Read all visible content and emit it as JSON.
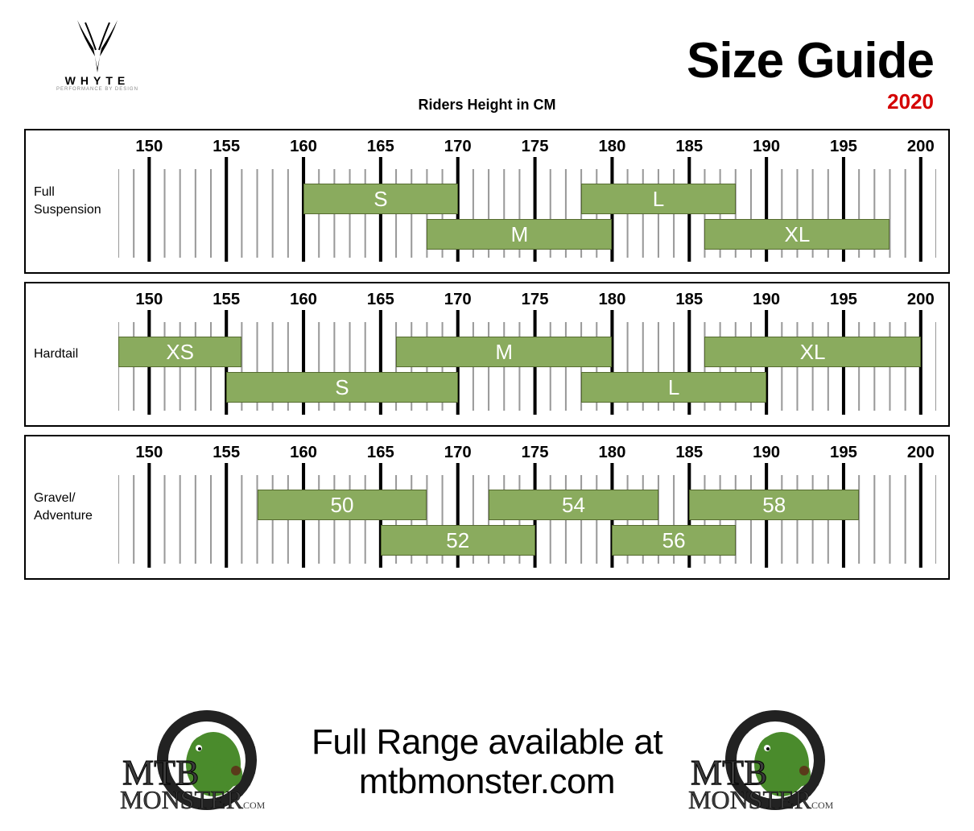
{
  "title": "Size Guide",
  "year": "2020",
  "axis_title": "Riders Height in CM",
  "brand_logo_text": "WHYTE",
  "brand_logo_sub": "PERFORMANCE BY DESIGN",
  "footer_line1": "Full Range available at",
  "footer_line2": "mtbmonster.com",
  "store_logo_main": "MTB",
  "store_logo_sub": "MONSTER",
  "store_logo_tld": ".COM",
  "axis": {
    "min": 148,
    "max": 201,
    "major_ticks": [
      150,
      155,
      160,
      165,
      170,
      175,
      180,
      185,
      190,
      195,
      200
    ],
    "minor_step": 1
  },
  "colors": {
    "bar_fill": "#8aab5e",
    "bar_border": "#556b2f",
    "major_tick": "#000000",
    "minor_tick": "#999999",
    "panel_border": "#000000",
    "background": "#ffffff",
    "year": "#d40000",
    "bar_text": "#ffffff",
    "logo_green": "#4a8b2c"
  },
  "typography": {
    "title_fontsize": 62,
    "year_fontsize": 26,
    "axis_title_fontsize": 18,
    "tick_label_fontsize": 18,
    "category_label_fontsize": 16,
    "bar_label_fontsize": 26,
    "footer_fontsize": 44,
    "title_font": "Impact",
    "body_font": "Arial"
  },
  "panels": [
    {
      "label": "Full\nSuspension",
      "bars": [
        {
          "label": "S",
          "from": 160,
          "to": 170,
          "row": 0
        },
        {
          "label": "M",
          "from": 168,
          "to": 180,
          "row": 1
        },
        {
          "label": "L",
          "from": 178,
          "to": 188,
          "row": 0
        },
        {
          "label": "XL",
          "from": 186,
          "to": 198,
          "row": 1
        }
      ]
    },
    {
      "label": "Hardtail",
      "bars": [
        {
          "label": "XS",
          "from": 148,
          "to": 156,
          "row": 0
        },
        {
          "label": "S",
          "from": 155,
          "to": 170,
          "row": 1
        },
        {
          "label": "M",
          "from": 166,
          "to": 180,
          "row": 0
        },
        {
          "label": "L",
          "from": 178,
          "to": 190,
          "row": 1
        },
        {
          "label": "XL",
          "from": 186,
          "to": 200,
          "row": 0
        }
      ]
    },
    {
      "label": "Gravel/\nAdventure",
      "bars": [
        {
          "label": "50",
          "from": 157,
          "to": 168,
          "row": 0
        },
        {
          "label": "52",
          "from": 165,
          "to": 175,
          "row": 1
        },
        {
          "label": "54",
          "from": 172,
          "to": 183,
          "row": 0
        },
        {
          "label": "56",
          "from": 180,
          "to": 188,
          "row": 1
        },
        {
          "label": "58",
          "from": 185,
          "to": 196,
          "row": 0
        }
      ]
    }
  ]
}
